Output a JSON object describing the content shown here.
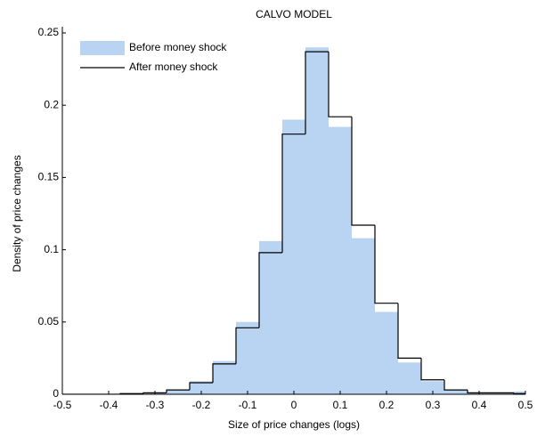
{
  "chart_data": {
    "type": "histogram",
    "title": "CALVO MODEL",
    "xlabel": "Size of price changes (logs)",
    "ylabel": "Density of price changes",
    "bins": [
      -0.525,
      -0.475,
      -0.425,
      -0.375,
      -0.325,
      -0.275,
      -0.225,
      -0.175,
      -0.125,
      -0.075,
      -0.025,
      0.025,
      0.075,
      0.125,
      0.175,
      0.225,
      0.275,
      0.325,
      0.375,
      0.425,
      0.475,
      0.525
    ],
    "series": [
      {
        "name": "Before money shock",
        "color": "#b9d3f2",
        "style": "filled",
        "values": [
          0,
          0,
          0,
          0,
          0.001,
          0.003,
          0.009,
          0.023,
          0.05,
          0.106,
          0.19,
          0.24,
          0.185,
          0.108,
          0.057,
          0.022,
          0.009,
          0.003,
          0.001,
          0.001,
          0.002
        ]
      },
      {
        "name": "After money shock",
        "color": "#000000",
        "style": "step",
        "values": [
          0,
          0,
          0,
          0.0005,
          0.001,
          0.003,
          0.008,
          0.021,
          0.046,
          0.098,
          0.18,
          0.237,
          0.192,
          0.117,
          0.063,
          0.025,
          0.01,
          0.003,
          0.001,
          0.001,
          0.0005
        ]
      }
    ],
    "xlim": [
      -0.5,
      0.5
    ],
    "xticks": [
      -0.5,
      -0.4,
      -0.3,
      -0.2,
      -0.1,
      0,
      0.1,
      0.2,
      0.3,
      0.4,
      0.5
    ],
    "ylim": [
      0,
      0.25
    ],
    "yticks": [
      0,
      0.05,
      0.1,
      0.15,
      0.2,
      0.25
    ],
    "legend": "upper left"
  }
}
